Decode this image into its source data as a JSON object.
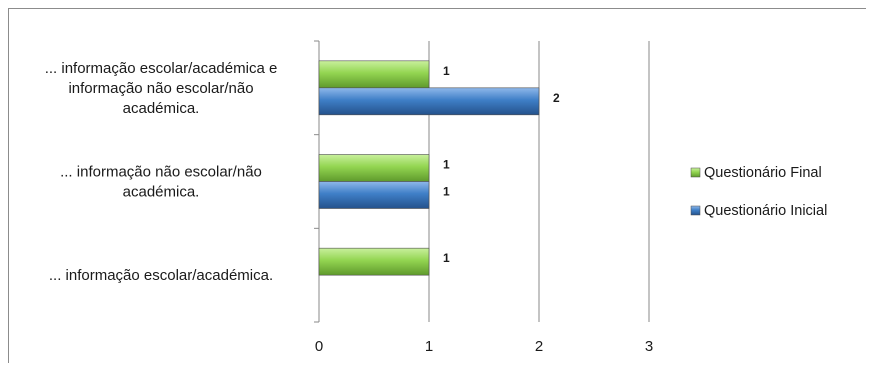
{
  "chart_data": {
    "type": "bar",
    "orientation": "horizontal",
    "title": "",
    "xlabel": "",
    "ylabel": "",
    "xlim": [
      0,
      3
    ],
    "x_ticks": [
      "0",
      "1",
      "2",
      "3"
    ],
    "grid": "vertical",
    "legend_position": "right",
    "categories": [
      [
        "... informação escolar/académica e",
        "informação não escolar/não",
        "académica."
      ],
      [
        "... informação não escolar/não",
        "académica."
      ],
      [
        "... informação escolar/académica."
      ]
    ],
    "series": [
      {
        "name": "Questionário Final",
        "color": "#8fd14f",
        "values": [
          1,
          1,
          1
        ],
        "labels": [
          "1",
          "1",
          "1"
        ]
      },
      {
        "name": "Questionário Inicial",
        "color": "#3f7fc7",
        "values": [
          2,
          1,
          null
        ],
        "labels": [
          "2",
          "1",
          ""
        ]
      }
    ]
  }
}
